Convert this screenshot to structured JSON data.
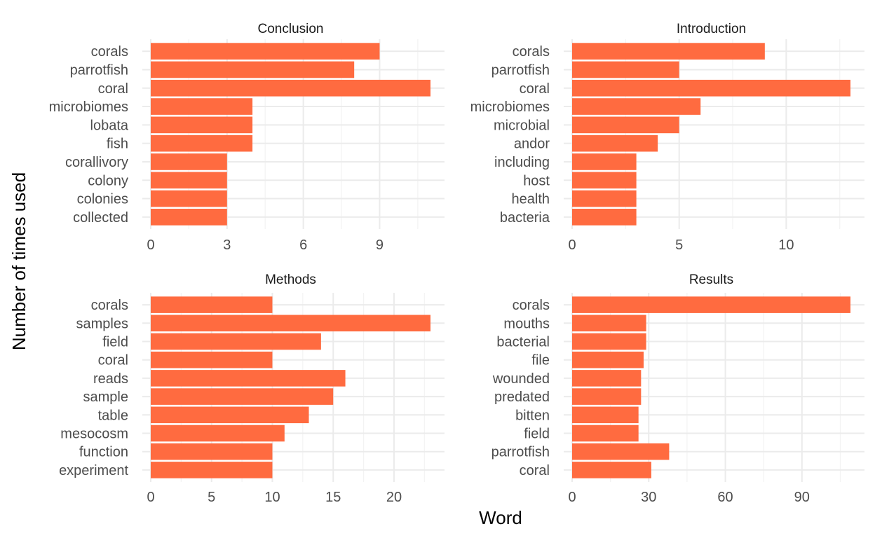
{
  "xlabel": "Word",
  "ylabel": "Number of times used",
  "colors": {
    "bar": "#FF6B40",
    "grid_major": "#EBEBEB",
    "grid_minor": "#F3F3F3"
  },
  "chart_data": [
    {
      "type": "bar",
      "orientation": "horizontal",
      "title": "Conclusion",
      "categories": [
        "corals",
        "parrotfish",
        "coral",
        "microbiomes",
        "lobata",
        "fish",
        "corallivory",
        "colony",
        "colonies",
        "collected"
      ],
      "values": [
        9,
        8,
        11,
        4,
        4,
        4,
        3,
        3,
        3,
        3
      ],
      "xlim": [
        0,
        11
      ],
      "ticks": [
        0,
        3,
        6,
        9
      ],
      "tick_labels": [
        "0",
        "3",
        "6",
        "9"
      ]
    },
    {
      "type": "bar",
      "orientation": "horizontal",
      "title": "Introduction",
      "categories": [
        "corals",
        "parrotfish",
        "coral",
        "microbiomes",
        "microbial",
        "andor",
        "including",
        "host",
        "health",
        "bacteria"
      ],
      "values": [
        9,
        5,
        13,
        6,
        5,
        4,
        3,
        3,
        3,
        3
      ],
      "xlim": [
        0,
        13
      ],
      "ticks": [
        0,
        5,
        10
      ],
      "tick_labels": [
        "0",
        "5",
        "10"
      ]
    },
    {
      "type": "bar",
      "orientation": "horizontal",
      "title": "Methods",
      "categories": [
        "corals",
        "samples",
        "field",
        "coral",
        "reads",
        "sample",
        "table",
        "mesocosm",
        "function",
        "experiment"
      ],
      "values": [
        10,
        23,
        14,
        10,
        16,
        15,
        13,
        11,
        10,
        10
      ],
      "xlim": [
        0,
        23
      ],
      "ticks": [
        0,
        5,
        10,
        15,
        20
      ],
      "tick_labels": [
        "0",
        "5",
        "10",
        "15",
        "20"
      ]
    },
    {
      "type": "bar",
      "orientation": "horizontal",
      "title": "Results",
      "categories": [
        "corals",
        "mouths",
        "bacterial",
        "file",
        "wounded",
        "predated",
        "bitten",
        "field",
        "parrotfish",
        "coral"
      ],
      "values": [
        109,
        29,
        29,
        28,
        27,
        27,
        26,
        26,
        38,
        31
      ],
      "xlim": [
        0,
        109
      ],
      "ticks": [
        0,
        30,
        60,
        90
      ],
      "tick_labels": [
        "0",
        "30",
        "60",
        "90"
      ]
    }
  ]
}
